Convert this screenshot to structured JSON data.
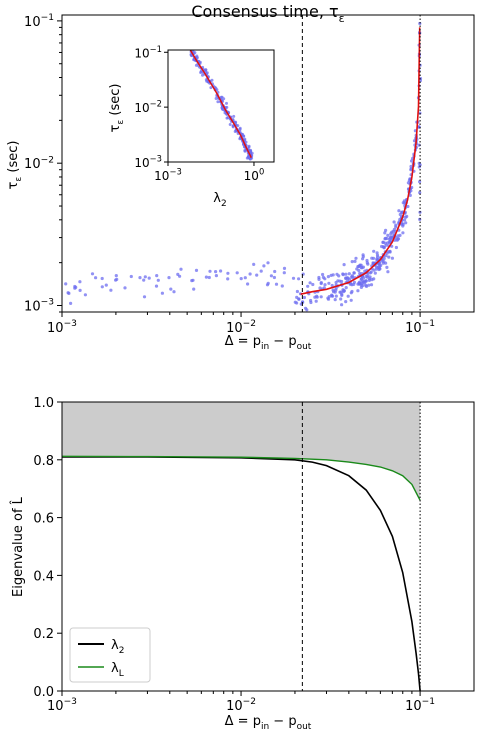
{
  "chart_data": [
    {
      "type": "scatter",
      "title": "Consensus time, τ",
      "title_sub": "ε",
      "xlabel": "Δ = p",
      "xlabel_sub1": "in",
      "xlabel_mid": " − p",
      "xlabel_sub2": "out",
      "ylabel": "τ",
      "ylabel_sub": "ε",
      "ylabel_unit": " (sec)",
      "xscale": "log",
      "yscale": "log",
      "xlim": [
        0.001,
        0.2
      ],
      "ylim": [
        0.0009,
        0.11
      ],
      "xticks": [
        {
          "value": 0.001,
          "base": "10",
          "exp": "−3"
        },
        {
          "value": 0.01,
          "base": "10",
          "exp": "−2"
        },
        {
          "value": 0.1,
          "base": "10",
          "exp": "−1"
        }
      ],
      "yticks": [
        {
          "value": 0.001,
          "base": "10",
          "exp": "−3"
        },
        {
          "value": 0.01,
          "base": "10",
          "exp": "−2"
        },
        {
          "value": 0.1,
          "base": "10",
          "exp": "−1"
        }
      ],
      "vlines": [
        {
          "x": 0.022,
          "style": "dashed"
        },
        {
          "x": 0.1,
          "style": "dotted"
        }
      ],
      "point_color": "#6e6ef0",
      "fit_color": "#e01010",
      "fit_curve": {
        "x": [
          0.0215,
          0.025,
          0.03,
          0.04,
          0.05,
          0.06,
          0.07,
          0.08,
          0.085,
          0.09,
          0.095,
          0.098,
          0.0995
        ],
        "y": [
          0.0012,
          0.00125,
          0.0013,
          0.00145,
          0.0017,
          0.0021,
          0.0028,
          0.0042,
          0.0055,
          0.008,
          0.014,
          0.025,
          0.09
        ]
      },
      "inset": {
        "xlabel": "λ",
        "xlabel_sub": "2",
        "ylabel": "τ",
        "ylabel_sub": "ε",
        "ylabel_unit": " (sec)",
        "xscale": "log",
        "yscale": "log",
        "xlim": [
          0.001,
          5
        ],
        "ylim": [
          0.001,
          0.11
        ],
        "xticks": [
          {
            "value": 0.001,
            "base": "10",
            "exp": "−3"
          },
          {
            "value": 1,
            "base": "10",
            "exp": "0"
          }
        ],
        "yticks": [
          {
            "value": 0.001,
            "base": "10",
            "exp": "−3"
          },
          {
            "value": 0.01,
            "base": "10",
            "exp": "−2"
          },
          {
            "value": 0.1,
            "base": "10",
            "exp": "−1"
          }
        ],
        "fit_curve": {
          "x": [
            0.006,
            0.01,
            0.02,
            0.05,
            0.1,
            0.2,
            0.35,
            0.5,
            0.65,
            0.75,
            0.8
          ],
          "y": [
            0.11,
            0.07,
            0.04,
            0.018,
            0.009,
            0.005,
            0.003,
            0.002,
            0.0015,
            0.0013,
            0.0012
          ]
        }
      }
    },
    {
      "type": "line",
      "xlabel": "Δ = p",
      "xlabel_sub1": "in",
      "xlabel_mid": " − p",
      "xlabel_sub2": "out",
      "ylabel": "Eigenvalue of ",
      "ylabel_sym": "L̂",
      "xscale": "log",
      "xlim": [
        0.001,
        0.2
      ],
      "ylim": [
        0.0,
        1.0
      ],
      "xticks": [
        {
          "value": 0.001,
          "base": "10",
          "exp": "−3"
        },
        {
          "value": 0.01,
          "base": "10",
          "exp": "−2"
        },
        {
          "value": 0.1,
          "base": "10",
          "exp": "−1"
        }
      ],
      "yticks": [
        "0.0",
        "0.2",
        "0.4",
        "0.6",
        "0.8",
        "1.0"
      ],
      "vlines": [
        {
          "x": 0.022,
          "style": "dashed"
        },
        {
          "x": 0.1,
          "style": "dotted"
        }
      ],
      "shaded_region": {
        "x_from": 0.001,
        "x_to": 0.1,
        "between": "λ_L and 1.0",
        "color": "#cccccc"
      },
      "legend_position": "lower-left",
      "series": [
        {
          "name": "λ",
          "name_sub": "2",
          "color": "#000000",
          "x": [
            0.001,
            0.003,
            0.01,
            0.02,
            0.025,
            0.03,
            0.04,
            0.05,
            0.06,
            0.07,
            0.08,
            0.09,
            0.095,
            0.098,
            0.1
          ],
          "y": [
            0.81,
            0.81,
            0.807,
            0.8,
            0.792,
            0.78,
            0.745,
            0.695,
            0.625,
            0.535,
            0.41,
            0.24,
            0.13,
            0.06,
            0.0
          ]
        },
        {
          "name": "λ",
          "name_sub": "L",
          "color": "#1a8a1a",
          "x": [
            0.001,
            0.003,
            0.01,
            0.02,
            0.03,
            0.04,
            0.05,
            0.06,
            0.07,
            0.08,
            0.09,
            0.1
          ],
          "y": [
            0.812,
            0.811,
            0.809,
            0.805,
            0.8,
            0.792,
            0.784,
            0.775,
            0.762,
            0.745,
            0.715,
            0.66
          ]
        }
      ]
    }
  ]
}
